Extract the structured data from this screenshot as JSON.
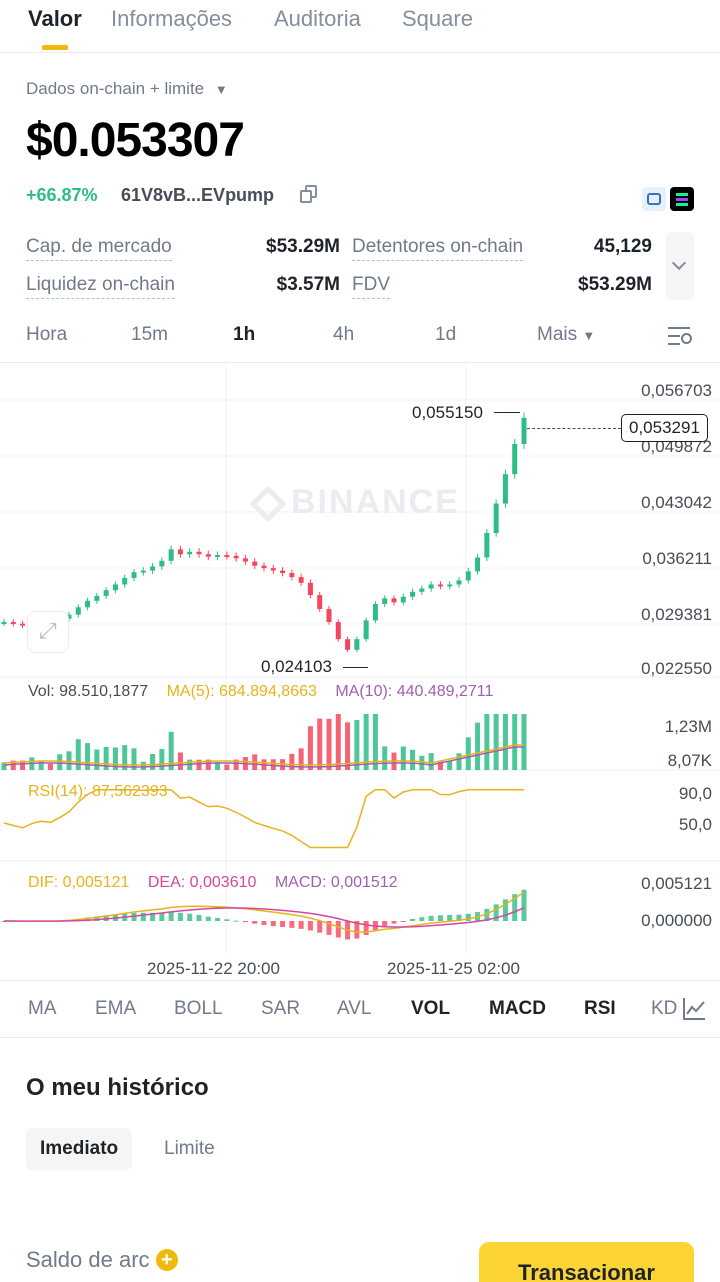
{
  "tabs": [
    "Valor",
    "Informações",
    "Auditoria",
    "Square"
  ],
  "source_selector": "Dados on-chain + limite",
  "price": "$0.053307",
  "change": "+66.87%",
  "address": "61V8vB...EVpump",
  "stats": {
    "market_cap_label": "Cap. de mercado",
    "market_cap": "$53.29M",
    "holders_label": "Detentores on-chain",
    "holders": "45,129",
    "liquidity_label": "Liquidez on-chain",
    "liquidity": "$3.57M",
    "fdv_label": "FDV",
    "fdv": "$53.29M"
  },
  "timeframes": [
    "Hora",
    "15m",
    "1h",
    "4h",
    "1d",
    "Mais"
  ],
  "active_timeframe": "1h",
  "watermark": "BINANCE",
  "chart_data": {
    "type": "line",
    "y_ticks": [
      "0,056703",
      "0,049872",
      "0,043042",
      "0,036211",
      "0,029381",
      "0,022550"
    ],
    "high_label": "0,055150",
    "low_label": "0,024103",
    "current_label": "0,053291",
    "x_ticks": [
      "2025-11-22 20:00",
      "2025-11-25 02:00"
    ],
    "price_series": [
      0.0283,
      0.0281,
      0.0279,
      0.0282,
      0.0284,
      0.0283,
      0.0287,
      0.0292,
      0.0301,
      0.0309,
      0.0315,
      0.0322,
      0.0329,
      0.0337,
      0.0344,
      0.0346,
      0.0351,
      0.0358,
      0.0372,
      0.0366,
      0.0369,
      0.0366,
      0.0363,
      0.0365,
      0.0364,
      0.0361,
      0.0357,
      0.0352,
      0.0349,
      0.0346,
      0.0343,
      0.0338,
      0.0331,
      0.0316,
      0.0299,
      0.0283,
      0.0262,
      0.0249,
      0.0262,
      0.0285,
      0.0305,
      0.0312,
      0.0307,
      0.0314,
      0.032,
      0.0324,
      0.0329,
      0.0327,
      0.0329,
      0.0334,
      0.0345,
      0.0362,
      0.0392,
      0.0428,
      0.0464,
      0.0501,
      0.0533
    ]
  },
  "volume": {
    "label": "Vol: 98.510,1877",
    "ma5": "MA(5): 684.894,8663",
    "ma10": "MA(10): 440.489,2711",
    "axis_top": "1,23M",
    "axis_bottom": "8,07K"
  },
  "rsi": {
    "label": "RSI(14): 87,562393",
    "axis_top": "90,0",
    "axis_bottom": "50,0"
  },
  "macd": {
    "dif": "DIF: 0,005121",
    "dea": "DEA: 0,003610",
    "macd": "MACD: 0,001512",
    "axis_top": "0,005121",
    "axis_bottom": "0,000000"
  },
  "indicators": [
    "MA",
    "EMA",
    "BOLL",
    "SAR",
    "AVL",
    "VOL",
    "MACD",
    "RSI",
    "KD"
  ],
  "history_title": "O meu histórico",
  "history_tabs": [
    "Imediato",
    "Limite"
  ],
  "balance_label": "Saldo de arc",
  "trade_button": "Transacionar",
  "colors": {
    "up": "#2ebd85",
    "down": "#f6465d",
    "accent": "#f0b90b"
  }
}
